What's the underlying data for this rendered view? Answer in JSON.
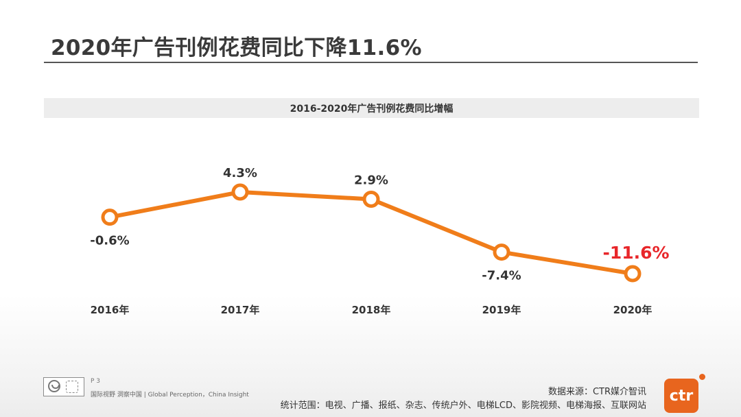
{
  "slide": {
    "title": "2020年广告刊例花费同比下降11.6%",
    "page_number": "P 3",
    "tagline": "国际视野 洞察中国 | Global Perception，China Insight",
    "source": "数据来源：CTR媒介智讯",
    "scope": "统计范围：电视、广播、报纸、杂志、传统户外、电梯LCD、影院视频、电梯海报、互联网站",
    "logo_text": "ctr"
  },
  "colors": {
    "line": "#f07d1a",
    "highlight_label": "#e8262a",
    "text": "#333333"
  },
  "chart_data": {
    "type": "line",
    "title": "2016-2020年广告刊例花费同比增幅",
    "categories": [
      "2016年",
      "2017年",
      "2018年",
      "2019年",
      "2020年"
    ],
    "values": [
      -0.6,
      4.3,
      2.9,
      -7.4,
      -11.6
    ],
    "labels": [
      "-0.6%",
      "4.3%",
      "2.9%",
      "-7.4%",
      "-11.6%"
    ],
    "highlight_index": 4,
    "xlabel": "",
    "ylabel": "",
    "grid": false,
    "legend": "none"
  }
}
